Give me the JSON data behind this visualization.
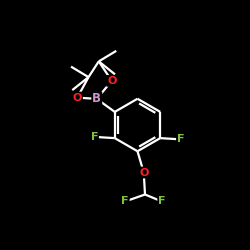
{
  "background_color": "#000000",
  "bond_color": "#ffffff",
  "atom_colors": {
    "B": "#c896c8",
    "O": "#ff2020",
    "F": "#80c040",
    "C": "#ffffff"
  },
  "fig_w": 2.5,
  "fig_h": 2.5,
  "dpi": 100,
  "xlim": [
    0,
    10
  ],
  "ylim": [
    0,
    10
  ]
}
